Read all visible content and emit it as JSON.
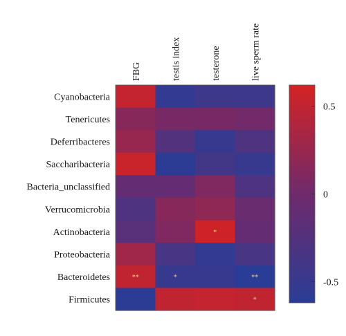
{
  "chart_data": {
    "type": "heatmap",
    "columns": [
      "FBG",
      "testis index",
      "testerone",
      "live sperm rate"
    ],
    "rows": [
      "Cyanobacteria",
      "Tenericutes",
      "Deferribacteres",
      "Saccharibacteria",
      "Bacteria_unclassified",
      "Verrucomicrobia",
      "Actinobacteria",
      "Proteobacteria",
      "Bacteroidetes",
      "Firmicutes"
    ],
    "values": [
      [
        0.52,
        -0.55,
        -0.45,
        -0.45
      ],
      [
        0.15,
        0.05,
        0.05,
        0.02
      ],
      [
        0.25,
        -0.25,
        -0.5,
        -0.3
      ],
      [
        0.55,
        -0.6,
        -0.4,
        -0.5
      ],
      [
        -0.1,
        -0.1,
        0.1,
        -0.3
      ],
      [
        -0.3,
        0.15,
        0.2,
        -0.05
      ],
      [
        -0.2,
        0.1,
        0.58,
        -0.1
      ],
      [
        0.3,
        -0.35,
        -0.55,
        -0.35
      ],
      [
        0.5,
        -0.5,
        -0.5,
        -0.62
      ],
      [
        -0.6,
        0.5,
        0.52,
        0.5
      ]
    ],
    "significance": [
      [
        "",
        "",
        "",
        ""
      ],
      [
        "",
        "",
        "",
        ""
      ],
      [
        "",
        "",
        "",
        ""
      ],
      [
        "",
        "",
        "",
        ""
      ],
      [
        "",
        "",
        "",
        ""
      ],
      [
        "",
        "",
        "",
        ""
      ],
      [
        "",
        "",
        "*",
        ""
      ],
      [
        "",
        "",
        "",
        ""
      ],
      [
        "**",
        "*",
        "",
        "**"
      ],
      [
        "",
        "",
        "",
        "*"
      ]
    ],
    "colorbar": {
      "min": -0.62,
      "max": 0.62,
      "ticks": [
        0.5,
        0,
        -0.5
      ],
      "tick_labels": [
        "0.5",
        "0",
        "-0.5"
      ],
      "colors": [
        "#2a3d96",
        "#6f2a6c",
        "#d42323"
      ]
    }
  }
}
